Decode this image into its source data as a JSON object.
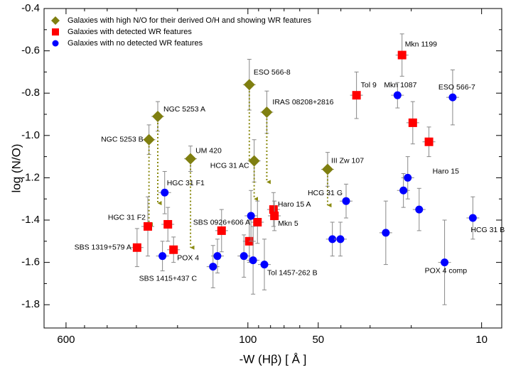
{
  "chart_data": {
    "type": "scatter",
    "x_label": "-W (Hβ)  [ Å ]",
    "y_label": "log (N/O)",
    "xscale": "log",
    "xlim": [
      745,
      8.2
    ],
    "ylim": [
      -1.91,
      -0.4
    ],
    "xticks": [
      600,
      100,
      50,
      10
    ],
    "xminorticks": [
      500,
      400,
      300,
      200,
      90,
      80,
      70,
      60,
      40,
      30,
      20
    ],
    "yticks": [
      -0.4,
      -0.6,
      -0.8,
      -1.0,
      -1.2,
      -1.4,
      -1.6,
      -1.8
    ],
    "yminorticks": [
      -0.5,
      -0.7,
      -0.9,
      -1.1,
      -1.3,
      -1.5,
      -1.7
    ],
    "legend": "upper left",
    "series": [
      {
        "name": "Galaxies with high N/O for their derived O/H and showing WR features",
        "color": "#7f7f10",
        "marker": "diamond",
        "x": [
          243,
          265,
          176,
          98.6,
          83,
          94,
          45.6
        ],
        "values": [
          -0.91,
          -1.02,
          -1.11,
          -0.76,
          -0.89,
          -1.12,
          -1.16
        ],
        "yerr": [
          0.07,
          0.07,
          0.06,
          0.12,
          0.1,
          0.1,
          0.08
        ],
        "arrow_to": [
          -1.32,
          -1.42,
          -1.53,
          -1.12,
          -1.22,
          -1.3,
          -1.33
        ],
        "labels": [
          "NGC 5253 A",
          "NGC 5253 B",
          "UM 420",
          "ESO 566-8",
          "IRAS 08208+2816",
          "HCG 31 AC",
          "III Zw 107"
        ]
      },
      {
        "name": "Galaxies with detected WR features",
        "color": "#ff0000",
        "marker": "square",
        "x": [
          21.9,
          34.3,
          19.7,
          16.8,
          77.7,
          77,
          91,
          98.6,
          129.6,
          268,
          220,
          208,
          298
        ],
        "values": [
          -0.62,
          -0.81,
          -0.94,
          -1.03,
          -1.35,
          -1.38,
          -1.41,
          -1.5,
          -1.45,
          -1.43,
          -1.42,
          -1.54,
          -1.53
        ],
        "yerr": [
          0.1,
          0.11,
          0.1,
          0.07,
          0.08,
          0.07,
          0.1,
          0.1,
          0.1,
          0.14,
          0.08,
          0.06,
          0.09
        ],
        "labels": [
          "Mkn 1199",
          "Tol 9",
          null,
          "Haro 15",
          "Haro 15 A",
          "Mkn 5",
          null,
          null,
          "SBS 0926+606 A",
          "HGC 31 F2",
          null,
          "POX 4",
          "SBS 1319+579 A"
        ]
      },
      {
        "name": "Galaxies with no detected WR features",
        "color": "#0000ff",
        "marker": "circle",
        "x": [
          22.9,
          13.3,
          20.7,
          21.6,
          18.5,
          10.9,
          14.4,
          25.7,
          38,
          43.5,
          40.2,
          227,
          232,
          135,
          141,
          104,
          97,
          95,
          85
        ],
        "values": [
          -0.81,
          -0.82,
          -1.2,
          -1.26,
          -1.35,
          -1.39,
          -1.6,
          -1.46,
          -1.31,
          -1.49,
          -1.49,
          -1.27,
          -1.57,
          -1.57,
          -1.62,
          -1.57,
          -1.38,
          -1.59,
          -1.61
        ],
        "yerr": [
          0.06,
          0.13,
          0.1,
          0.08,
          0.1,
          0.1,
          0.2,
          0.15,
          0.08,
          0.08,
          0.08,
          0.1,
          0.07,
          0.08,
          0.1,
          0.1,
          0.12,
          0.16,
          0.12
        ],
        "labels": [
          "Mkn 1087",
          "ESO 566-7",
          null,
          null,
          null,
          "HCG 31 B",
          "POX 4 comp",
          null,
          "HCG 31 G",
          null,
          null,
          "HGC 31 F1",
          "SBS 1415+437 C",
          null,
          null,
          null,
          null,
          null,
          "Tol 1457-262 B"
        ]
      }
    ]
  }
}
